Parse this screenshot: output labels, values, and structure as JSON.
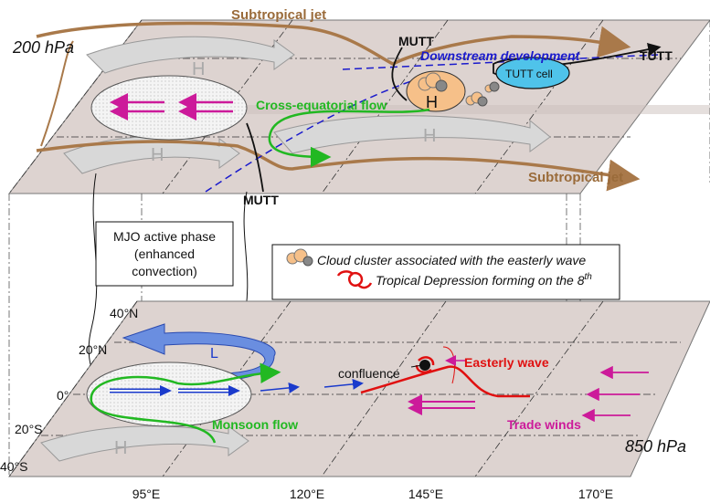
{
  "levels": {
    "upper": "200 hPa",
    "lower": "850 hPa"
  },
  "upper_labels": {
    "subtropical_jet_north": "Subtropical jet",
    "subtropical_jet_south": "Subtropical jet",
    "mutt_upper": "MUTT",
    "mutt_lower": "MUTT",
    "downstream": "Downstream development",
    "tutt": "TUTT",
    "tutt_cell": "TUTT cell",
    "cross_equatorial": "Cross-equatorial flow",
    "high_1": "H",
    "high_2": "H",
    "high_3": "H",
    "high_4": "H"
  },
  "mjo_box": {
    "line1": "MJO active phase",
    "line2": "(enhanced",
    "line3": "convection)"
  },
  "legend": {
    "cloud": "Cloud cluster associated with the easterly wave",
    "td_prefix": "Tropical Depression forming on the 8",
    "td_sup": "th"
  },
  "lower_labels": {
    "low": "L",
    "high": "H",
    "confluence": "confluence",
    "easterly_wave": "Easterly wave",
    "monsoon": "Monsoon flow",
    "trade": "Trade winds"
  },
  "latitudes": [
    "40°N",
    "20°N",
    "0°",
    "20°S",
    "40°S"
  ],
  "longitudes": [
    "95°E",
    "120°E",
    "145°E",
    "170°E"
  ],
  "colors": {
    "plane": "#ddd3d0",
    "jet": "#a9794a",
    "magenta": "#cc1a9a",
    "green": "#22b822",
    "blue": "#1a1acc",
    "red": "#e01010",
    "tutt_cell": "#4fc3ea",
    "cloud": "#f6c089"
  },
  "icons": [
    "cloud-cluster-icon",
    "tropical-depression-icon"
  ]
}
